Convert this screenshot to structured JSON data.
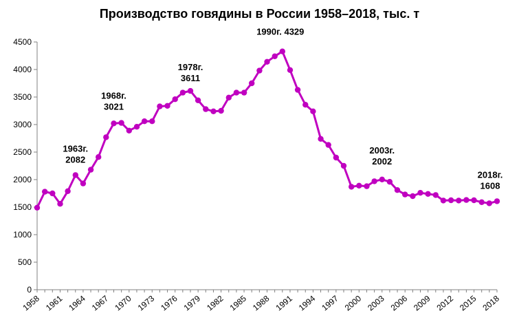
{
  "chart_data": {
    "type": "line",
    "title": "Производство говядины в России 1958–2018, тыс. т",
    "xlabel": "",
    "ylabel": "",
    "ylim": [
      0,
      4500
    ],
    "yticks": [
      0,
      500,
      1000,
      1500,
      2000,
      2500,
      3000,
      3500,
      4000,
      4500
    ],
    "xlim": [
      1958,
      2018
    ],
    "xticks": [
      1958,
      1961,
      1964,
      1967,
      1970,
      1973,
      1976,
      1979,
      1982,
      1985,
      1988,
      1991,
      1994,
      1997,
      2000,
      2003,
      2006,
      2009,
      2012,
      2015,
      2018
    ],
    "grid": false,
    "legend": "none",
    "color": "#c000c0",
    "series": [
      {
        "x": [
          1958,
          1959,
          1960,
          1961,
          1962,
          1963,
          1964,
          1965,
          1966,
          1967,
          1968,
          1969,
          1970,
          1971,
          1972,
          1973,
          1974,
          1975,
          1976,
          1977,
          1978,
          1979,
          1980,
          1981,
          1982,
          1983,
          1984,
          1985,
          1986,
          1987,
          1988,
          1989,
          1990,
          1991,
          1992,
          1993,
          1994,
          1995,
          1996,
          1997,
          1998,
          1999,
          2000,
          2001,
          2002,
          2003,
          2004,
          2005,
          2006,
          2007,
          2008,
          2009,
          2010,
          2011,
          2012,
          2013,
          2014,
          2015,
          2016,
          2017,
          2018
        ],
        "y": [
          1490,
          1780,
          1750,
          1560,
          1790,
          2082,
          1930,
          2180,
          2410,
          2770,
          3021,
          3030,
          2890,
          2960,
          3060,
          3060,
          3330,
          3340,
          3460,
          3580,
          3611,
          3440,
          3280,
          3240,
          3250,
          3490,
          3580,
          3580,
          3750,
          3980,
          4140,
          4240,
          4329,
          3990,
          3630,
          3360,
          3240,
          2740,
          2630,
          2400,
          2250,
          1870,
          1890,
          1880,
          1970,
          2002,
          1960,
          1810,
          1730,
          1700,
          1760,
          1740,
          1720,
          1620,
          1625,
          1620,
          1630,
          1625,
          1590,
          1570,
          1608
        ]
      }
    ],
    "annotations": [
      {
        "x": 1963,
        "line1": "1963г.",
        "line2": "2082"
      },
      {
        "x": 1968,
        "line1": "1968г.",
        "line2": "3021"
      },
      {
        "x": 1978,
        "line1": "1978г.",
        "line2": "3611"
      },
      {
        "x": 1990,
        "line1": "1990г. 4329",
        "line2": ""
      },
      {
        "x": 2003,
        "line1": "2003г.",
        "line2": "2002"
      },
      {
        "x": 2018,
        "line1": "2018г.",
        "line2": "1608"
      }
    ]
  }
}
